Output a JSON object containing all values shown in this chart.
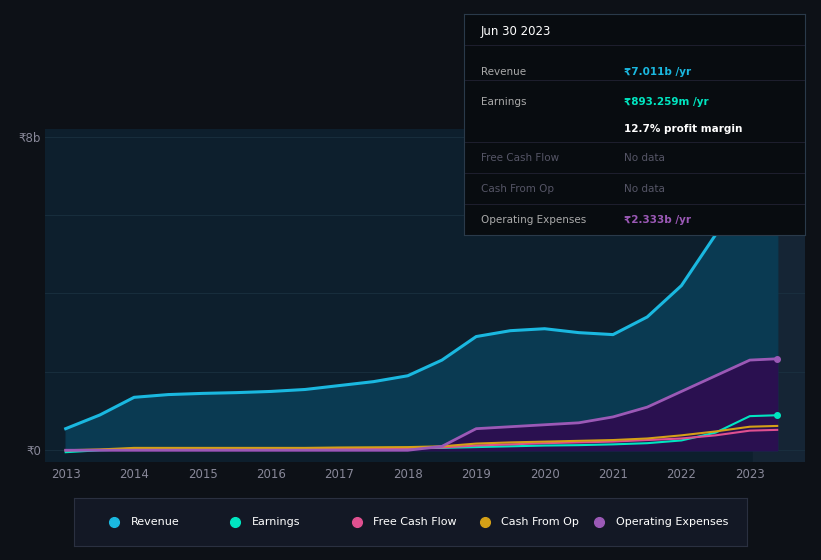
{
  "background_color": "#0d1117",
  "plot_bg_color": "#0d1f2d",
  "years": [
    2013,
    2013.5,
    2014,
    2014.5,
    2015,
    2015.5,
    2016,
    2016.5,
    2017,
    2017.5,
    2018,
    2018.5,
    2019,
    2019.5,
    2020,
    2020.5,
    2021,
    2021.5,
    2022,
    2022.5,
    2023,
    2023.4
  ],
  "revenue": [
    0.55,
    0.9,
    1.35,
    1.42,
    1.45,
    1.47,
    1.5,
    1.55,
    1.65,
    1.75,
    1.9,
    2.3,
    2.9,
    3.05,
    3.1,
    3.0,
    2.95,
    3.4,
    4.2,
    5.5,
    7.0,
    7.011
  ],
  "earnings": [
    -0.05,
    0.0,
    0.02,
    0.02,
    0.02,
    0.02,
    0.02,
    0.03,
    0.04,
    0.045,
    0.05,
    0.06,
    0.08,
    0.1,
    0.12,
    0.13,
    0.15,
    0.18,
    0.25,
    0.45,
    0.87,
    0.893
  ],
  "free_cash_flow": [
    0.0,
    0.01,
    0.04,
    0.04,
    0.04,
    0.04,
    0.04,
    0.04,
    0.05,
    0.055,
    0.06,
    0.07,
    0.12,
    0.15,
    0.18,
    0.2,
    0.22,
    0.26,
    0.3,
    0.38,
    0.5,
    0.52
  ],
  "cash_from_op": [
    0.0,
    0.02,
    0.06,
    0.06,
    0.06,
    0.06,
    0.06,
    0.06,
    0.07,
    0.075,
    0.08,
    0.1,
    0.17,
    0.2,
    0.22,
    0.24,
    0.26,
    0.3,
    0.38,
    0.48,
    0.6,
    0.62
  ],
  "operating_expenses": [
    0.0,
    0.0,
    0.0,
    0.0,
    0.0,
    0.0,
    0.0,
    0.0,
    0.0,
    0.0,
    0.0,
    0.1,
    0.55,
    0.6,
    0.65,
    0.7,
    0.85,
    1.1,
    1.5,
    1.9,
    2.3,
    2.333
  ],
  "revenue_color": "#1ab8e0",
  "earnings_color": "#00e5c0",
  "free_cash_flow_color": "#e05090",
  "cash_from_op_color": "#d4a017",
  "operating_expenses_color": "#9b59b6",
  "revenue_fill_color": "#0a3a52",
  "operating_fill_color": "#2a1050",
  "ylim": [
    -0.3,
    8.2
  ],
  "y_tick_positions": [
    0,
    8
  ],
  "ylabel_8b": "₹8b",
  "ylabel_0": "₹0",
  "xlabel_ticks": [
    2013,
    2014,
    2015,
    2016,
    2017,
    2018,
    2019,
    2020,
    2021,
    2022,
    2023
  ],
  "grid_color": "#1a3040",
  "grid_y_positions": [
    0,
    2,
    4,
    6,
    8
  ],
  "info_box": {
    "date": "Jun 30 2023",
    "revenue_label": "Revenue",
    "revenue_value": "₹7.011b /yr",
    "revenue_color": "#1ab8e0",
    "earnings_label": "Earnings",
    "earnings_value": "₹893.259m /yr",
    "earnings_sub": "12.7% profit margin",
    "earnings_color": "#00e5c0",
    "profit_margin_color": "#ffffff",
    "fcf_label": "Free Cash Flow",
    "fcf_value": "No data",
    "cashop_label": "Cash From Op",
    "cashop_value": "No data",
    "opex_label": "Operating Expenses",
    "opex_value": "₹2.333b /yr",
    "opex_color": "#9b59b6",
    "box_bg": "#080c10",
    "box_border": "#2a3a4a",
    "text_color": "#aaaaaa",
    "dim_text_color": "#555566"
  },
  "legend_items": [
    {
      "label": "Revenue",
      "color": "#1ab8e0"
    },
    {
      "label": "Earnings",
      "color": "#00e5c0"
    },
    {
      "label": "Free Cash Flow",
      "color": "#e05090"
    },
    {
      "label": "Cash From Op",
      "color": "#d4a017"
    },
    {
      "label": "Operating Expenses",
      "color": "#9b59b6"
    }
  ],
  "legend_bg": "#131825",
  "legend_border": "#2a3040",
  "highlight_x": 2023.4,
  "highlight_color": "#152535",
  "xmin": 2012.7,
  "xmax": 2023.8
}
